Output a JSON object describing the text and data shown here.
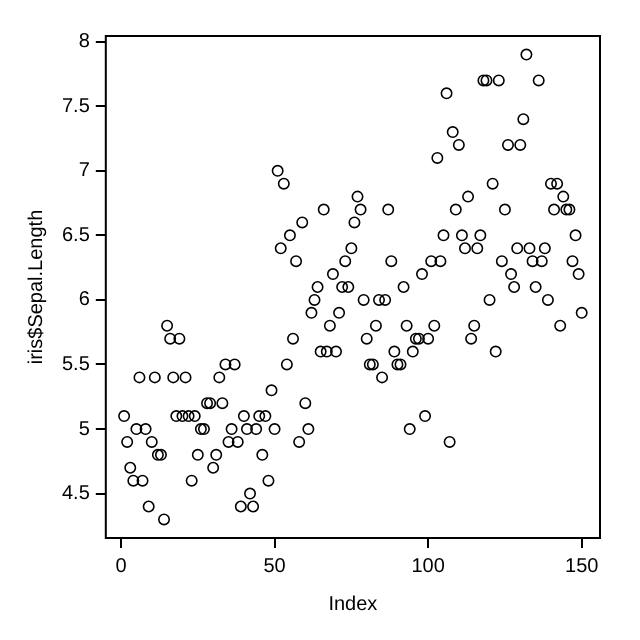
{
  "chart_data": {
    "type": "scatter",
    "xlabel": "Index",
    "ylabel": "iris$Sepal.Length",
    "x": [
      1,
      2,
      3,
      4,
      5,
      6,
      7,
      8,
      9,
      10,
      11,
      12,
      13,
      14,
      15,
      16,
      17,
      18,
      19,
      20,
      21,
      22,
      23,
      24,
      25,
      26,
      27,
      28,
      29,
      30,
      31,
      32,
      33,
      34,
      35,
      36,
      37,
      38,
      39,
      40,
      41,
      42,
      43,
      44,
      45,
      46,
      47,
      48,
      49,
      50,
      51,
      52,
      53,
      54,
      55,
      56,
      57,
      58,
      59,
      60,
      61,
      62,
      63,
      64,
      65,
      66,
      67,
      68,
      69,
      70,
      71,
      72,
      73,
      74,
      75,
      76,
      77,
      78,
      79,
      80,
      81,
      82,
      83,
      84,
      85,
      86,
      87,
      88,
      89,
      90,
      91,
      92,
      93,
      94,
      95,
      96,
      97,
      98,
      99,
      100,
      101,
      102,
      103,
      104,
      105,
      106,
      107,
      108,
      109,
      110,
      111,
      112,
      113,
      114,
      115,
      116,
      117,
      118,
      119,
      120,
      121,
      122,
      123,
      124,
      125,
      126,
      127,
      128,
      129,
      130,
      131,
      132,
      133,
      134,
      135,
      136,
      137,
      138,
      139,
      140,
      141,
      142,
      143,
      144,
      145,
      146,
      147,
      148,
      149,
      150
    ],
    "series": [
      {
        "color": "#000000",
        "values": [
          5.1,
          4.9,
          4.7,
          4.6,
          5.0,
          5.4,
          4.6,
          5.0,
          4.4,
          4.9,
          5.4,
          4.8,
          4.8,
          4.3,
          5.8,
          5.7,
          5.4,
          5.1,
          5.7,
          5.1,
          5.4,
          5.1,
          4.6,
          5.1,
          4.8,
          5.0,
          5.0,
          5.2,
          5.2,
          4.7,
          4.8,
          5.4,
          5.2,
          5.5,
          4.9,
          5.0,
          5.5,
          4.9,
          4.4,
          5.1,
          5.0,
          4.5,
          4.4,
          5.0,
          5.1,
          4.8,
          5.1,
          4.6,
          5.3,
          5.0,
          7.0,
          6.4,
          6.9,
          5.5,
          6.5,
          5.7,
          6.3,
          4.9,
          6.6,
          5.2,
          5.0,
          5.9,
          6.0,
          6.1,
          5.6,
          6.7,
          5.6,
          5.8,
          6.2,
          5.6,
          5.9,
          6.1,
          6.3,
          6.1,
          6.4,
          6.6,
          6.8,
          6.7,
          6.0,
          5.7,
          5.5,
          5.5,
          5.8,
          6.0,
          5.4,
          6.0,
          6.7,
          6.3,
          5.6,
          5.5,
          5.5,
          6.1,
          5.8,
          5.0,
          5.6,
          5.7,
          5.7,
          6.2,
          5.1,
          5.7,
          6.3,
          5.8,
          7.1,
          6.3,
          6.5,
          7.6,
          4.9,
          7.3,
          6.7,
          7.2,
          6.5,
          6.4,
          6.8,
          5.7,
          5.8,
          6.4,
          6.5,
          7.7,
          7.7,
          6.0,
          6.9,
          5.6,
          7.7,
          6.3,
          6.7,
          7.2,
          6.2,
          6.1,
          6.4,
          7.2,
          7.4,
          7.9,
          6.4,
          6.3,
          6.1,
          7.7,
          6.3,
          6.4,
          6.0,
          6.9,
          6.7,
          6.9,
          5.8,
          6.8,
          6.7,
          6.7,
          6.3,
          6.5,
          6.2,
          5.9
        ]
      }
    ],
    "xlim": [
      -4.96,
      155.96
    ],
    "xticks": [
      0,
      50,
      100,
      150
    ],
    "ylim": [
      4.156,
      8.044
    ],
    "yticks": [
      4.5,
      5.0,
      5.5,
      6.0,
      6.5,
      7.0,
      7.5,
      8.0
    ],
    "grid": false,
    "marker": "circle"
  }
}
